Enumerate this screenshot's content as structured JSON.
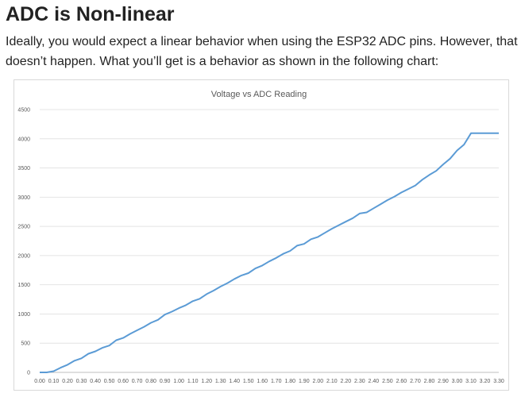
{
  "article": {
    "title": "ADC is Non-linear",
    "intro": "Ideally, you would expect a linear behavior when using the ESP32 ADC pins. However, that doesn’t happen. What you’ll get is a behavior as shown in the following chart:"
  },
  "colors": {
    "line": "#5b9bd5",
    "grid": "#e4e4e4",
    "text": "#595959"
  },
  "chart_data": {
    "type": "line",
    "title": "Voltage vs ADC Reading",
    "xlabel": "",
    "ylabel": "",
    "ylim": [
      0,
      4500
    ],
    "xlim": [
      0,
      3.3
    ],
    "yticks": [
      0,
      500,
      1000,
      1500,
      2000,
      2500,
      3000,
      3500,
      4000,
      4500
    ],
    "ytick_labels": [
      "0",
      "500",
      "1000",
      "1500",
      "2000",
      "2500",
      "3000",
      "3500",
      "4000",
      "4500"
    ],
    "xtick_labels": [
      "0.00",
      "0.10",
      "0.20",
      "0.30",
      "0.40",
      "0.50",
      "0.60",
      "0.70",
      "0.80",
      "0.90",
      "1.00",
      "1.10",
      "1.20",
      "1.30",
      "1.40",
      "1.50",
      "1.60",
      "1.70",
      "1.80",
      "1.90",
      "2.00",
      "2.10",
      "2.20",
      "2.30",
      "2.40",
      "2.50",
      "2.60",
      "2.70",
      "2.80",
      "2.90",
      "3.00",
      "3.10",
      "3.20",
      "3.30"
    ],
    "grid": true,
    "legend": "none",
    "series": [
      {
        "name": "ADC Reading",
        "x": [
          0,
          0.05,
          0.1,
          0.15,
          0.2,
          0.25,
          0.3,
          0.35,
          0.4,
          0.45,
          0.5,
          0.55,
          0.6,
          0.65,
          0.7,
          0.75,
          0.8,
          0.85,
          0.9,
          0.95,
          1.0,
          1.05,
          1.1,
          1.15,
          1.2,
          1.25,
          1.3,
          1.35,
          1.4,
          1.45,
          1.5,
          1.55,
          1.6,
          1.65,
          1.7,
          1.75,
          1.8,
          1.85,
          1.9,
          1.95,
          2.0,
          2.05,
          2.1,
          2.15,
          2.2,
          2.25,
          2.3,
          2.35,
          2.4,
          2.45,
          2.5,
          2.55,
          2.6,
          2.65,
          2.7,
          2.75,
          2.8,
          2.85,
          2.9,
          2.95,
          3.0,
          3.05,
          3.1,
          3.15,
          3.2,
          3.25,
          3.3
        ],
        "values": [
          0,
          0,
          20,
          80,
          130,
          200,
          240,
          320,
          360,
          420,
          460,
          550,
          590,
          660,
          720,
          780,
          850,
          900,
          990,
          1040,
          1100,
          1150,
          1220,
          1260,
          1340,
          1400,
          1470,
          1530,
          1600,
          1660,
          1700,
          1780,
          1830,
          1900,
          1960,
          2030,
          2080,
          2170,
          2200,
          2280,
          2320,
          2390,
          2460,
          2520,
          2580,
          2640,
          2720,
          2740,
          2810,
          2880,
          2950,
          3010,
          3080,
          3140,
          3200,
          3300,
          3380,
          3450,
          3560,
          3660,
          3800,
          3900,
          4095,
          4095,
          4095,
          4095,
          4095
        ]
      }
    ]
  }
}
